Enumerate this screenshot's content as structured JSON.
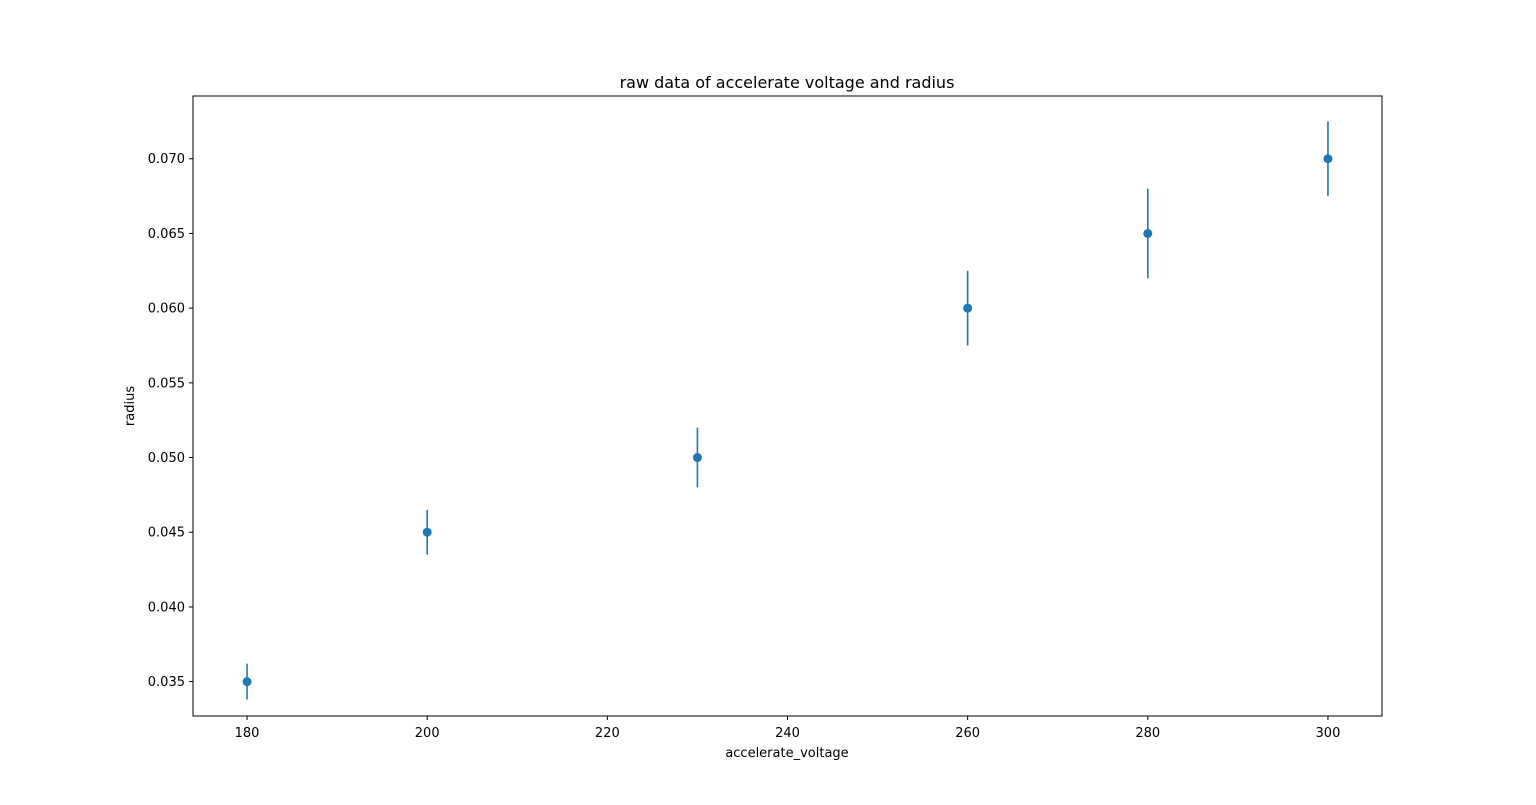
{
  "chart_data": {
    "type": "scatter",
    "title": "raw data of accelerate voltage and radius",
    "xlabel": "accelerate_voltage",
    "ylabel": "radius",
    "xlim": [
      174,
      306
    ],
    "ylim": [
      0.0327,
      0.0742
    ],
    "xticks": [
      180,
      200,
      220,
      240,
      260,
      280,
      300
    ],
    "yticks": [
      0.035,
      0.04,
      0.045,
      0.05,
      0.055,
      0.06,
      0.065,
      0.07
    ],
    "ytick_labels": [
      "0.035",
      "0.040",
      "0.045",
      "0.050",
      "0.055",
      "0.060",
      "0.065",
      "0.070"
    ],
    "grid": false,
    "color": "#1f77b4",
    "points": [
      {
        "x": 180,
        "y": 0.035,
        "yerr": 0.0012
      },
      {
        "x": 200,
        "y": 0.045,
        "yerr": 0.0015
      },
      {
        "x": 230,
        "y": 0.05,
        "yerr": 0.002
      },
      {
        "x": 260,
        "y": 0.06,
        "yerr": 0.0025
      },
      {
        "x": 280,
        "y": 0.065,
        "yerr": 0.003
      },
      {
        "x": 300,
        "y": 0.07,
        "yerr": 0.0025
      }
    ]
  }
}
